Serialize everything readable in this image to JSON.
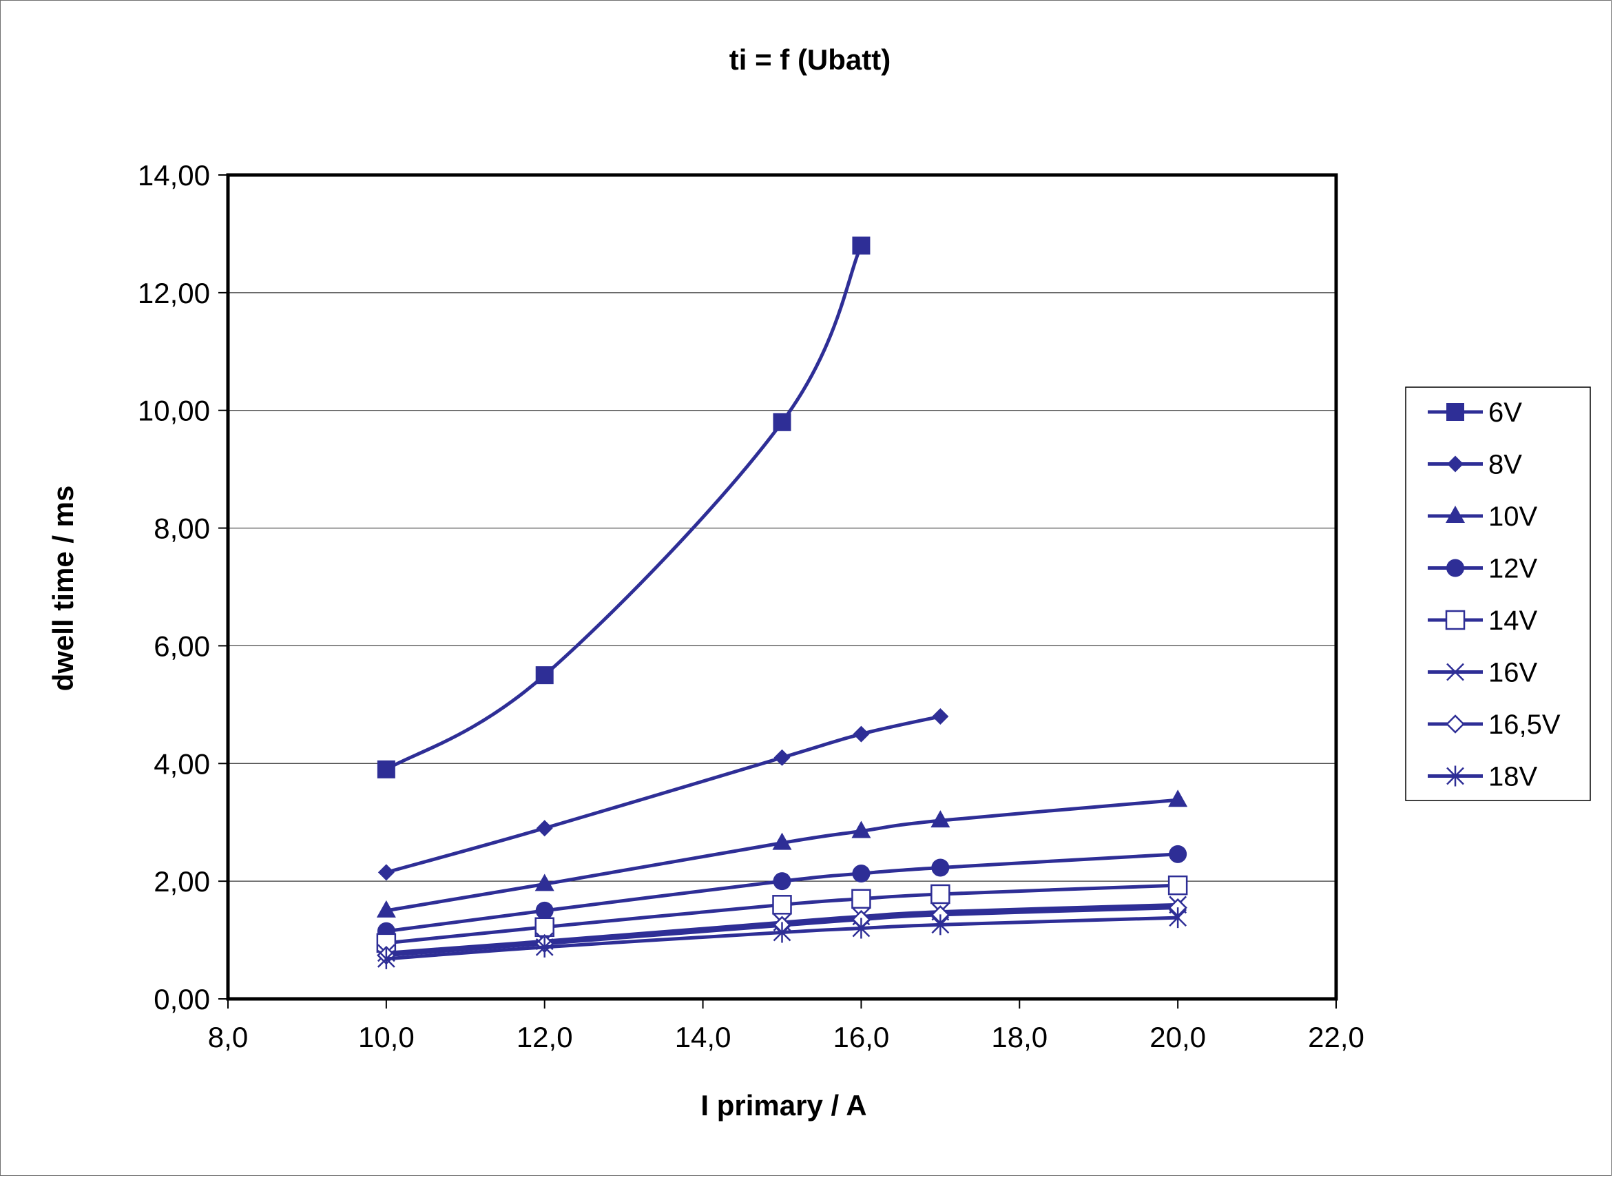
{
  "chart_data": {
    "type": "line",
    "title": "ti = f (Ubatt)",
    "xlabel": "I primary / A",
    "ylabel": "dwell time / ms",
    "xlim": [
      8,
      22
    ],
    "ylim": [
      0,
      14
    ],
    "xticks": [
      "8,0",
      "10,0",
      "12,0",
      "14,0",
      "16,0",
      "18,0",
      "20,0",
      "22,0"
    ],
    "yticks": [
      "0,00",
      "2,00",
      "4,00",
      "6,00",
      "8,00",
      "10,00",
      "12,00",
      "14,00"
    ],
    "grid": "horizontal",
    "legend": "right",
    "color": "#2e2e96",
    "series": [
      {
        "name": "6V",
        "marker": "square-filled",
        "x": [
          10,
          12,
          15,
          16
        ],
        "y": [
          3.9,
          5.5,
          9.8,
          12.8
        ]
      },
      {
        "name": "8V",
        "marker": "diamond-filled",
        "x": [
          10,
          12,
          15,
          16,
          17
        ],
        "y": [
          2.15,
          2.9,
          4.1,
          4.5,
          4.8
        ]
      },
      {
        "name": "10V",
        "marker": "triangle-filled",
        "x": [
          10,
          12,
          15,
          16,
          17,
          20
        ],
        "y": [
          1.5,
          1.95,
          2.65,
          2.85,
          3.03,
          3.38
        ]
      },
      {
        "name": "12V",
        "marker": "circle-filled",
        "x": [
          10,
          12,
          15,
          16,
          17,
          20
        ],
        "y": [
          1.15,
          1.5,
          2.0,
          2.13,
          2.23,
          2.46
        ]
      },
      {
        "name": "14V",
        "marker": "square-open",
        "x": [
          10,
          12,
          15,
          16,
          17,
          20
        ],
        "y": [
          0.95,
          1.22,
          1.6,
          1.7,
          1.78,
          1.93
        ]
      },
      {
        "name": "16V",
        "marker": "x",
        "x": [
          10,
          12,
          15,
          16,
          17,
          20
        ],
        "y": [
          0.78,
          0.98,
          1.3,
          1.4,
          1.48,
          1.6
        ]
      },
      {
        "name": "16,5V",
        "marker": "diamond-open",
        "x": [
          10,
          12,
          15,
          16,
          17,
          20
        ],
        "y": [
          0.74,
          0.94,
          1.25,
          1.35,
          1.43,
          1.55
        ]
      },
      {
        "name": "18V",
        "marker": "star",
        "x": [
          10,
          12,
          15,
          16,
          17,
          20
        ],
        "y": [
          0.68,
          0.88,
          1.13,
          1.2,
          1.26,
          1.38
        ]
      }
    ]
  }
}
